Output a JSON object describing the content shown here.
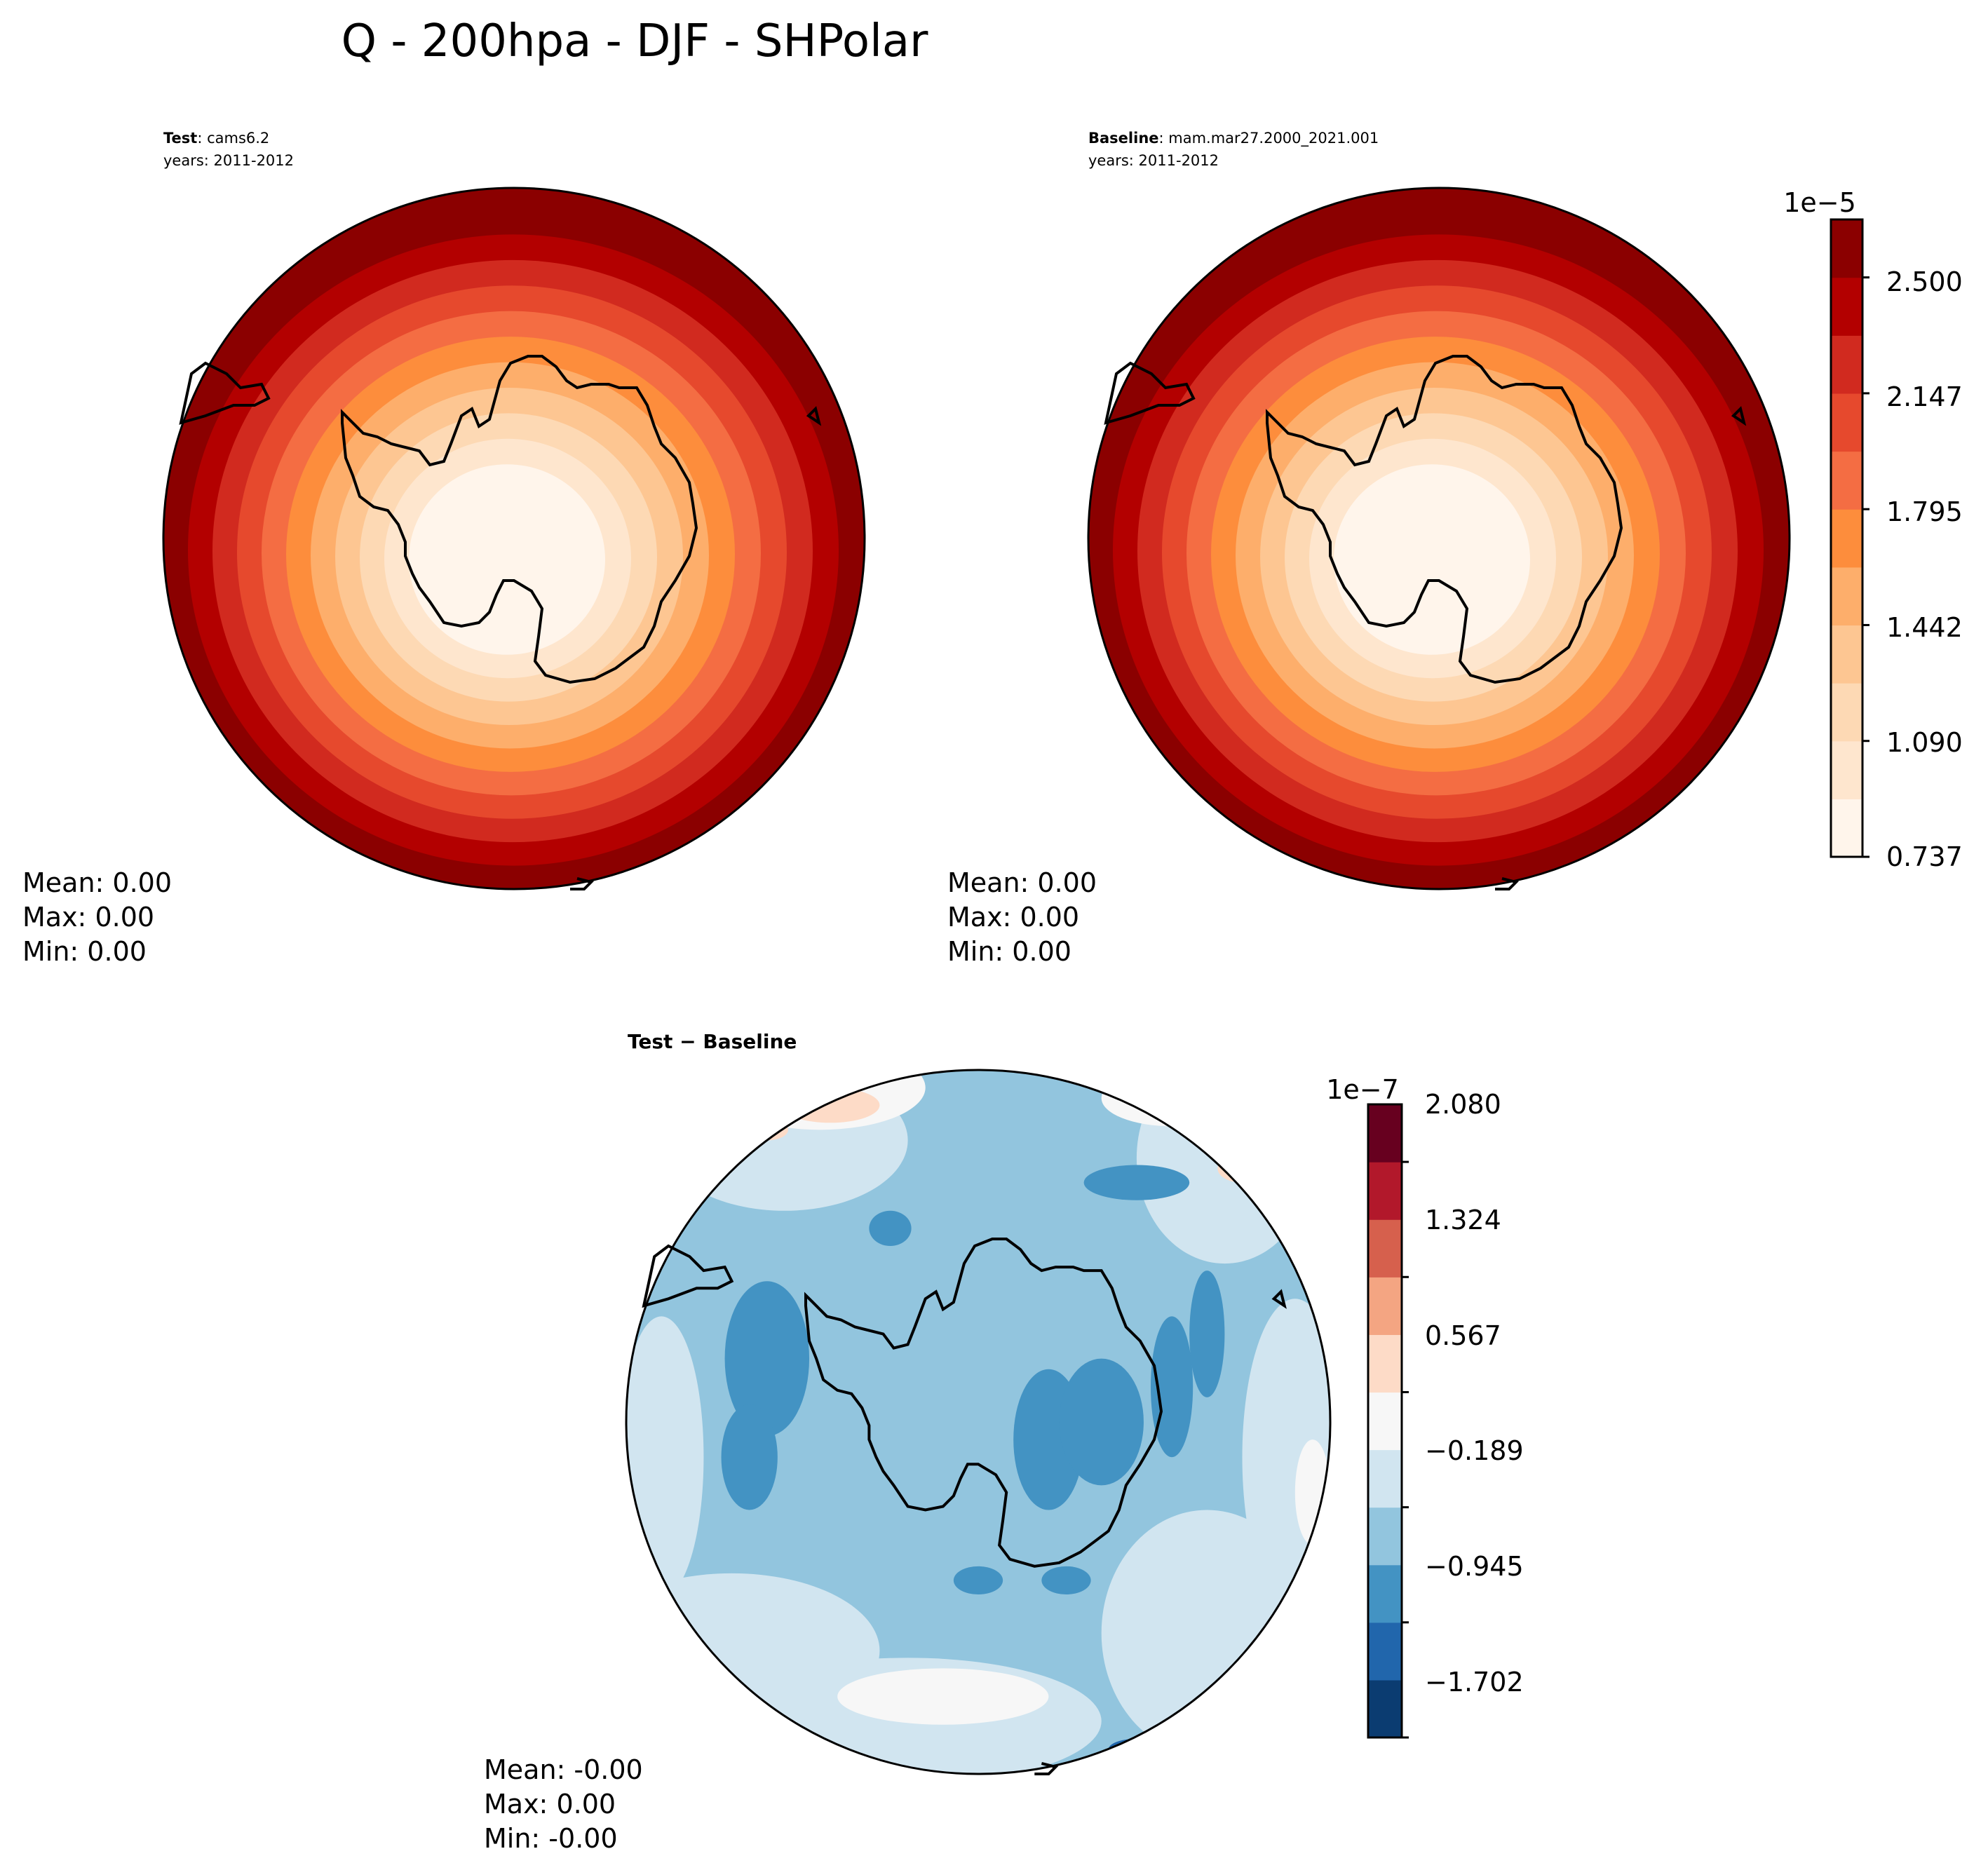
{
  "figure": {
    "title": "Q - 200hpa - DJF - SHPolar"
  },
  "palettes": {
    "orrd": [
      "#fff5eb",
      "#fee6ce",
      "#fdd9b4",
      "#fdc692",
      "#fdae6b",
      "#fd8d3c",
      "#f46d43",
      "#e6492d",
      "#d12a1f",
      "#b30000",
      "#8b0000"
    ],
    "rdbu": [
      "#0b3c71",
      "#2166ac",
      "#4393c3",
      "#92c5de",
      "#d1e5f0",
      "#f7f7f7",
      "#fddbc7",
      "#f4a582",
      "#d6604d",
      "#b2182b",
      "#67001f"
    ],
    "coast": "#000000"
  },
  "panels": {
    "test": {
      "heading_bold": "Test",
      "heading_rest": ": cams6.2",
      "years": "years: 2011-2012",
      "stats": {
        "mean": "Mean:  0.00",
        "max": "Max:  0.00",
        "min": "Min:  0.00"
      }
    },
    "baseline": {
      "heading_bold": "Baseline",
      "heading_rest": ": mam.mar27.2000_2021.001",
      "years": "years: 2011-2012",
      "stats": {
        "mean": "Mean:  0.00",
        "max": "Max:  0.00",
        "min": "Min:  0.00"
      }
    },
    "diff": {
      "heading": "Test − Baseline",
      "stats": {
        "mean": "Mean: -0.00",
        "max": "Max:  0.00",
        "min": "Min: -0.00"
      }
    }
  },
  "chart_data": [
    {
      "type": "heatmap",
      "name": "Test",
      "projection": "south-polar-stereographic",
      "levels": [
        0.737,
        0.913,
        1.09,
        1.266,
        1.442,
        1.619,
        1.795,
        1.971,
        2.147,
        2.324,
        2.5,
        2.676
      ],
      "level_scale": "1e-5",
      "field_pattern": "low over Antarctica (~0.74-1.1e-5), increasing radially to ~2.6e-5 at the 40S rim",
      "colormap": "OrRd"
    },
    {
      "type": "heatmap",
      "name": "Baseline",
      "projection": "south-polar-stereographic",
      "levels": [
        0.737,
        0.913,
        1.09,
        1.266,
        1.442,
        1.619,
        1.795,
        1.971,
        2.147,
        2.324,
        2.5,
        2.676
      ],
      "level_scale": "1e-5",
      "colormap": "OrRd"
    },
    {
      "type": "heatmap",
      "name": "Test − Baseline",
      "projection": "south-polar-stereographic",
      "levels": [
        -2.08,
        -1.702,
        -1.324,
        -0.945,
        -0.567,
        -0.189,
        0.189,
        0.567,
        0.945,
        1.324,
        1.702,
        2.08
      ],
      "level_scale": "1e-7",
      "colormap": "RdBu_r"
    }
  ],
  "colorbars": {
    "top": {
      "offset_label": "1e−5",
      "tick_labels": [
        "0.737",
        "1.090",
        "1.442",
        "1.795",
        "2.147",
        "2.500"
      ]
    },
    "diff": {
      "offset_label": "1e−7",
      "tick_labels": [
        "−1.702",
        "−0.945",
        "−0.189",
        "0.567",
        "1.324",
        "2.080"
      ]
    }
  }
}
